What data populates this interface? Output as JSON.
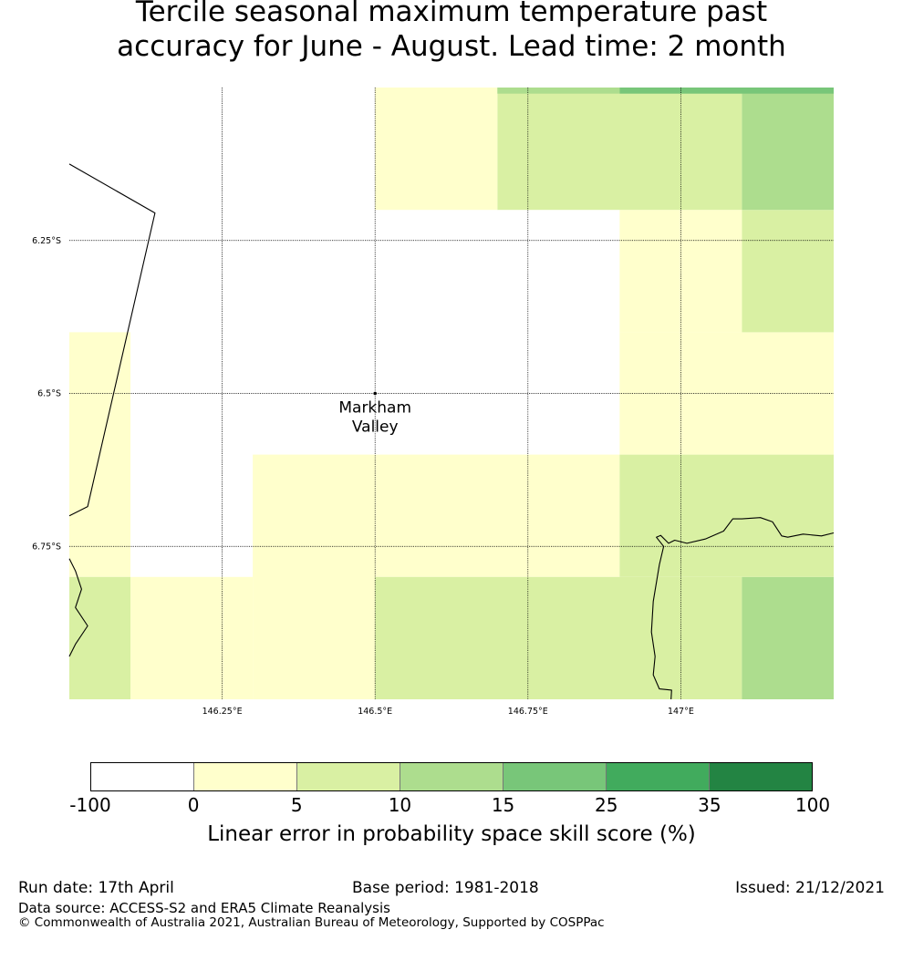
{
  "title_line1": "Tercile seasonal maximum temperature past",
  "title_line2": "accuracy for June - August. Lead time: 2 month",
  "map": {
    "extent": {
      "lon_min": 146.0,
      "lon_max": 147.25,
      "lat_min": -7.0,
      "lat_max": -6.0
    },
    "grid_lon": [
      146.25,
      146.5,
      146.75,
      147.0
    ],
    "grid_lat": [
      -6.25,
      -6.5,
      -6.75
    ],
    "lon_labels": [
      "146.25°E",
      "146.5°E",
      "146.75°E",
      "147°E"
    ],
    "lat_labels": [
      "6.25°S",
      "6.5°S",
      "6.75°S"
    ],
    "place_name_line1": "Markham",
    "place_name_line2": "Valley",
    "place_point": {
      "lon": 146.5,
      "lat": -6.5
    },
    "cells": [
      {
        "lon0": 146.0,
        "lon1": 146.1,
        "lat0": -6.4,
        "lat1": -6.8,
        "cat": 1
      },
      {
        "lon0": 146.0,
        "lon1": 146.1,
        "lat0": -6.8,
        "lat1": -7.0,
        "cat": 2
      },
      {
        "lon0": 146.1,
        "lon1": 146.3,
        "lat0": -6.8,
        "lat1": -7.0,
        "cat": 1
      },
      {
        "lon0": 146.3,
        "lon1": 146.5,
        "lat0": -6.6,
        "lat1": -7.0,
        "cat": 1
      },
      {
        "lon0": 146.5,
        "lon1": 146.9,
        "lat0": -6.6,
        "lat1": -6.8,
        "cat": 1
      },
      {
        "lon0": 146.5,
        "lon1": 147.1,
        "lat0": -6.8,
        "lat1": -7.0,
        "cat": 2
      },
      {
        "lon0": 147.1,
        "lon1": 147.25,
        "lat0": -6.8,
        "lat1": -7.0,
        "cat": 3
      },
      {
        "lon0": 146.9,
        "lon1": 147.25,
        "lat0": -6.6,
        "lat1": -6.8,
        "cat": 2
      },
      {
        "lon0": 146.9,
        "lon1": 147.25,
        "lat0": -6.4,
        "lat1": -6.6,
        "cat": 1
      },
      {
        "lon0": 146.9,
        "lon1": 147.1,
        "lat0": -6.2,
        "lat1": -6.4,
        "cat": 1
      },
      {
        "lon0": 147.1,
        "lon1": 147.25,
        "lat0": -6.2,
        "lat1": -6.4,
        "cat": 2
      },
      {
        "lon0": 147.1,
        "lon1": 147.25,
        "lat0": -6.0,
        "lat1": -6.2,
        "cat": 3
      },
      {
        "lon0": 146.7,
        "lon1": 147.1,
        "lat0": -6.0,
        "lat1": -6.2,
        "cat": 2
      },
      {
        "lon0": 146.5,
        "lon1": 146.7,
        "lat0": -6.0,
        "lat1": -6.2,
        "cat": 1
      },
      {
        "lon0": 146.7,
        "lon1": 146.9,
        "lat0": -6.0,
        "lat1": -6.01,
        "cat": 3
      },
      {
        "lon0": 146.9,
        "lon1": 147.25,
        "lat0": -6.0,
        "lat1": -6.01,
        "cat": 4
      }
    ],
    "coastlines": {
      "border_line": [
        [
          146.0,
          -6.125
        ],
        [
          146.14,
          -6.205
        ],
        [
          146.03,
          -6.685
        ],
        [
          146.0,
          -6.7
        ]
      ],
      "west_coast": [
        [
          146.0,
          -6.77
        ],
        [
          146.01,
          -6.79
        ],
        [
          146.02,
          -6.82
        ],
        [
          146.01,
          -6.85
        ],
        [
          146.03,
          -6.88
        ],
        [
          146.01,
          -6.91
        ],
        [
          146.0,
          -6.93
        ]
      ],
      "east_coast": [
        [
          146.984,
          -7.0
        ],
        [
          146.985,
          -6.985
        ],
        [
          146.965,
          -6.983
        ],
        [
          146.955,
          -6.96
        ],
        [
          146.958,
          -6.93
        ],
        [
          146.952,
          -6.89
        ],
        [
          146.955,
          -6.84
        ],
        [
          146.965,
          -6.78
        ],
        [
          146.972,
          -6.75
        ],
        [
          146.96,
          -6.735
        ],
        [
          146.967,
          -6.732
        ],
        [
          146.98,
          -6.745
        ],
        [
          146.99,
          -6.74
        ],
        [
          147.01,
          -6.745
        ],
        [
          147.04,
          -6.738
        ],
        [
          147.07,
          -6.725
        ],
        [
          147.085,
          -6.705
        ],
        [
          147.1,
          -6.705
        ],
        [
          147.13,
          -6.703
        ],
        [
          147.15,
          -6.71
        ],
        [
          147.165,
          -6.733
        ],
        [
          147.175,
          -6.735
        ],
        [
          147.2,
          -6.73
        ],
        [
          147.23,
          -6.733
        ],
        [
          147.25,
          -6.728
        ]
      ]
    }
  },
  "colorbar": {
    "colors": [
      "#ffffff",
      "#ffffcc",
      "#d9f0a3",
      "#addd8e",
      "#78c679",
      "#41ab5d",
      "#238443"
    ],
    "ticks": [
      "-100",
      "0",
      "5",
      "10",
      "15",
      "25",
      "35",
      "100"
    ],
    "label": "Linear error in probability space skill score (%)"
  },
  "footer": {
    "run_date": "Run date: 17th April",
    "base_period": "Base period: 1981-2018",
    "issued": "Issued: 21/12/2021",
    "data_source": "Data source: ACCESS-S2 and ERA5 Climate Reanalysis",
    "copyright": "© Commonwealth of Australia 2021, Australian Bureau of Meteorology, Supported by COSPPac"
  }
}
